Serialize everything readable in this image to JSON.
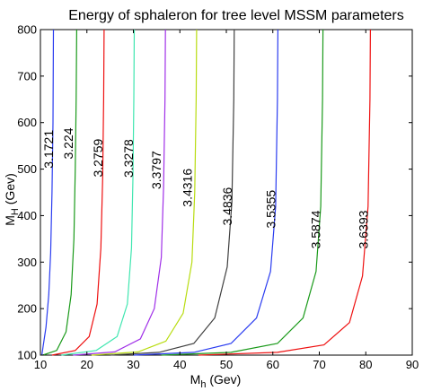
{
  "chart_data": {
    "type": "contour",
    "title": "Energy of sphaleron for tree level MSSM parameters",
    "xlabel": "M_h (Gev)",
    "ylabel": "M_H (Gev)",
    "xlim": [
      10,
      90
    ],
    "ylim": [
      100,
      800
    ],
    "xticks": [
      10,
      20,
      30,
      40,
      50,
      60,
      70,
      80,
      90
    ],
    "yticks": [
      100,
      200,
      300,
      400,
      500,
      600,
      700,
      800
    ],
    "grid": false,
    "series": [
      {
        "level": "3.1721",
        "color": "#2a3cf0",
        "points": [
          [
            10.3,
            100
          ],
          [
            10.6,
            120
          ],
          [
            11.2,
            160
          ],
          [
            11.8,
            230
          ],
          [
            12.2,
            320
          ],
          [
            12.5,
            450
          ],
          [
            12.7,
            600
          ],
          [
            12.8,
            800
          ]
        ],
        "label_at": [
          12.0,
          543
        ]
      },
      {
        "level": "3.224",
        "color": "#1a9a1a",
        "points": [
          [
            10.5,
            100
          ],
          [
            13.5,
            110
          ],
          [
            15.5,
            150
          ],
          [
            16.6,
            230
          ],
          [
            17.2,
            350
          ],
          [
            17.5,
            500
          ],
          [
            17.7,
            650
          ],
          [
            17.8,
            800
          ]
        ],
        "label_at": [
          16.2,
          555
        ]
      },
      {
        "level": "3.2759",
        "color": "#ee1010",
        "points": [
          [
            12.5,
            100
          ],
          [
            17.5,
            110
          ],
          [
            20.5,
            140
          ],
          [
            22.2,
            210
          ],
          [
            23.0,
            330
          ],
          [
            23.4,
            480
          ],
          [
            23.6,
            650
          ],
          [
            23.7,
            800
          ]
        ],
        "label_at": [
          22.6,
          524
        ]
      },
      {
        "level": "3.3278",
        "color": "#40e6b0",
        "points": [
          [
            14.5,
            100
          ],
          [
            22.0,
            110
          ],
          [
            26.5,
            140
          ],
          [
            28.7,
            210
          ],
          [
            29.6,
            330
          ],
          [
            29.9,
            480
          ],
          [
            30.1,
            650
          ],
          [
            30.2,
            800
          ]
        ],
        "label_at": [
          29.2,
          523
        ]
      },
      {
        "level": "3.3797",
        "color": "#a030e8",
        "points": [
          [
            17.0,
            100
          ],
          [
            26.0,
            107
          ],
          [
            31.5,
            135
          ],
          [
            34.5,
            200
          ],
          [
            36.0,
            310
          ],
          [
            36.5,
            460
          ],
          [
            36.8,
            650
          ],
          [
            36.9,
            800
          ]
        ],
        "label_at": [
          35.2,
          498
        ]
      },
      {
        "level": "3.4316",
        "color": "#b8dc10",
        "points": [
          [
            21.0,
            100
          ],
          [
            31.0,
            107
          ],
          [
            37.0,
            130
          ],
          [
            40.7,
            190
          ],
          [
            42.6,
            300
          ],
          [
            43.2,
            450
          ],
          [
            43.5,
            650
          ],
          [
            43.6,
            800
          ]
        ],
        "label_at": [
          41.8,
          460
        ]
      },
      {
        "level": "3.4836",
        "color": "#404040",
        "points": [
          [
            25.0,
            100
          ],
          [
            35.5,
            106
          ],
          [
            43.0,
            125
          ],
          [
            47.5,
            180
          ],
          [
            50.2,
            290
          ],
          [
            51.2,
            430
          ],
          [
            51.6,
            650
          ],
          [
            51.7,
            800
          ]
        ],
        "label_at": [
          50.4,
          420
        ]
      },
      {
        "level": "3.5355",
        "color": "#2a3cf0",
        "points": [
          [
            30.0,
            100
          ],
          [
            43.0,
            106
          ],
          [
            51.0,
            125
          ],
          [
            56.5,
            180
          ],
          [
            59.5,
            280
          ],
          [
            60.6,
            420
          ],
          [
            61.0,
            650
          ],
          [
            61.1,
            800
          ]
        ],
        "label_at": [
          59.8,
          414
        ]
      },
      {
        "level": "3.5874",
        "color": "#1a9a1a",
        "points": [
          [
            36.0,
            100
          ],
          [
            51.0,
            106
          ],
          [
            61.0,
            125
          ],
          [
            66.5,
            180
          ],
          [
            69.3,
            280
          ],
          [
            70.3,
            420
          ],
          [
            70.7,
            650
          ],
          [
            70.8,
            800
          ]
        ],
        "label_at": [
          69.5,
          370
        ]
      },
      {
        "level": "3.6393",
        "color": "#ee1010",
        "points": [
          [
            44.0,
            100
          ],
          [
            61.0,
            106
          ],
          [
            71.0,
            122
          ],
          [
            76.5,
            170
          ],
          [
            79.3,
            270
          ],
          [
            80.5,
            420
          ],
          [
            80.9,
            650
          ],
          [
            81.0,
            800
          ]
        ],
        "label_at": [
          79.7,
          370
        ]
      }
    ]
  }
}
